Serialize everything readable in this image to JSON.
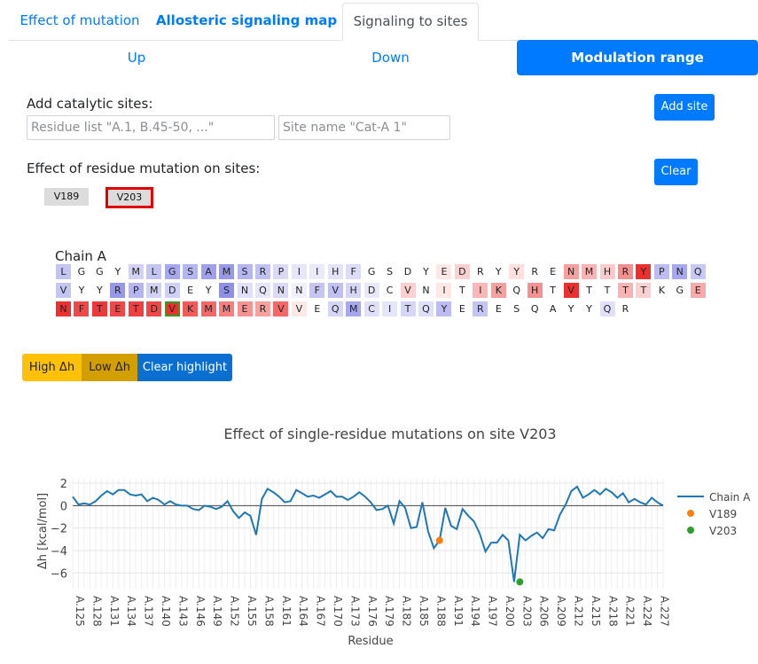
{
  "tabs": [
    {
      "label": "Effect of mutation"
    },
    {
      "label": "Allosteric signaling map"
    },
    {
      "label": "Signaling to sites"
    }
  ],
  "subtabs": [
    {
      "label": "Up"
    },
    {
      "label": "Down"
    },
    {
      "label": "Modulation range"
    }
  ],
  "add_sites": {
    "label": "Add catalytic sites:",
    "residue_placeholder": "Residue list \"A.1, B.45-50, ...\"",
    "name_placeholder": "Site name \"Cat-A 1\"",
    "add_button": "Add site"
  },
  "effect_sites": {
    "label": "Effect of residue mutation on sites:",
    "clear_button": "Clear",
    "sites": [
      {
        "name": "V189",
        "selected": false
      },
      {
        "name": "V203",
        "selected": true
      }
    ]
  },
  "sequence": {
    "chain_label": "Chain A",
    "rows": [
      [
        [
          "L",
          "#c5c5f4"
        ],
        [
          "G",
          "#ffffff"
        ],
        [
          "G",
          "#ffffff"
        ],
        [
          "Y",
          "#ffffff"
        ],
        [
          "M",
          "#d2d2f6"
        ],
        [
          "L",
          "#c5c5f4"
        ],
        [
          "G",
          "#a8a8ee"
        ],
        [
          "S",
          "#b5b5f0"
        ],
        [
          "A",
          "#a0a0ec"
        ],
        [
          "M",
          "#9898eb"
        ],
        [
          "S",
          "#b5b5f0"
        ],
        [
          "R",
          "#c0c0f2"
        ],
        [
          "P",
          "#dadaf7"
        ],
        [
          "I",
          "#e6e6fa"
        ],
        [
          "I",
          "#eaeafb"
        ],
        [
          "H",
          "#e4e4f9"
        ],
        [
          "F",
          "#dcdcf7"
        ],
        [
          "G",
          "#ffffff"
        ],
        [
          "S",
          "#ffffff"
        ],
        [
          "D",
          "#ffffff"
        ],
        [
          "Y",
          "#ffffff"
        ],
        [
          "E",
          "#fde8e8"
        ],
        [
          "D",
          "#fbd0d0"
        ],
        [
          "R",
          "#ffffff"
        ],
        [
          "Y",
          "#ffffff"
        ],
        [
          "Y",
          "#fde0e0"
        ],
        [
          "R",
          "#ffffff"
        ],
        [
          "E",
          "#ffffff"
        ],
        [
          "N",
          "#f6a0a0"
        ],
        [
          "M",
          "#f8b4b4"
        ],
        [
          "H",
          "#fbcaca"
        ],
        [
          "R",
          "#f29090"
        ],
        [
          "Y",
          "#ec3030"
        ],
        [
          "P",
          "#bcbcf2"
        ],
        [
          "N",
          "#a8a8ee"
        ],
        [
          "Q",
          "#c8c8f4"
        ]
      ],
      [
        [
          "V",
          "#c5c5f4"
        ],
        [
          "Y",
          "#ffffff"
        ],
        [
          "Y",
          "#ffffff"
        ],
        [
          "R",
          "#9898eb"
        ],
        [
          "P",
          "#b5b5f0"
        ],
        [
          "M",
          "#d2d2f6"
        ],
        [
          "D",
          "#d0d0f6"
        ],
        [
          "E",
          "#ffffff"
        ],
        [
          "Y",
          "#ffffff"
        ],
        [
          "S",
          "#9090e8"
        ],
        [
          "N",
          "#e0e0f8"
        ],
        [
          "Q",
          "#e6e6fa"
        ],
        [
          "N",
          "#dadaf7"
        ],
        [
          "N",
          "#f0f0fc"
        ],
        [
          "F",
          "#c5c5f4"
        ],
        [
          "V",
          "#c0c0f2"
        ],
        [
          "H",
          "#d5d5f6"
        ],
        [
          "D",
          "#e8e8fa"
        ],
        [
          "C",
          "#ffffff"
        ],
        [
          "V",
          "#fbd0d0"
        ],
        [
          "N",
          "#ffffff"
        ],
        [
          "I",
          "#fde8e8"
        ],
        [
          "T",
          "#ffffff"
        ],
        [
          "I",
          "#f8b8b8"
        ],
        [
          "K",
          "#f4a0a0"
        ],
        [
          "Q",
          "#ffffff"
        ],
        [
          "H",
          "#f29292"
        ],
        [
          "T",
          "#ffffff"
        ],
        [
          "V",
          "#ec3030"
        ],
        [
          "T",
          "#ffffff"
        ],
        [
          "T",
          "#ffffff"
        ],
        [
          "T",
          "#f8b4b4"
        ],
        [
          "T",
          "#fbd0d0"
        ],
        [
          "K",
          "#ffffff"
        ],
        [
          "G",
          "#ffffff"
        ],
        [
          "E",
          "#f6aaaa"
        ]
      ],
      [
        [
          "N",
          "#ec3030"
        ],
        [
          "F",
          "#f04848"
        ],
        [
          "T",
          "#ec3838"
        ],
        [
          "E",
          "#f04848"
        ],
        [
          "T",
          "#ee4040"
        ],
        [
          "D",
          "#f04848"
        ],
        [
          "V",
          "#ec3030"
        ],
        [
          "K",
          "#f25a5a"
        ],
        [
          "M",
          "#f46868"
        ],
        [
          "M",
          "#f87f7f"
        ],
        [
          "E",
          "#f69292"
        ],
        [
          "R",
          "#f8a0a0"
        ],
        [
          "V",
          "#f46868"
        ],
        [
          "V",
          "#fde8e8"
        ],
        [
          "E",
          "#ffffff"
        ],
        [
          "Q",
          "#d5d5f6"
        ],
        [
          "M",
          "#a8a8ee"
        ],
        [
          "C",
          "#e0e0f8"
        ],
        [
          "I",
          "#e6e6fa"
        ],
        [
          "T",
          "#d5d5f6"
        ],
        [
          "Q",
          "#e0e0f8"
        ],
        [
          "Y",
          "#bcbcf2"
        ],
        [
          "E",
          "#ffffff"
        ],
        [
          "R",
          "#c5c5f4"
        ],
        [
          "E",
          "#ffffff"
        ],
        [
          "S",
          "#ffffff"
        ],
        [
          "Q",
          "#ffffff"
        ],
        [
          "A",
          "#ffffff"
        ],
        [
          "Y",
          "#ffffff"
        ],
        [
          "Y",
          "#ffffff"
        ],
        [
          "Q",
          "#e0e0f8"
        ],
        [
          "R",
          "#ffffff"
        ]
      ]
    ]
  },
  "highlight_buttons": {
    "high": "High Δh",
    "low": "Low Δh",
    "clear": "Clear highlight"
  },
  "chart_data": {
    "type": "line",
    "title": "Effect of single-residue mutations on site V203",
    "xlabel": "Residue",
    "ylabel": "Δh [kcal/mol]",
    "ylim": [
      -7.4,
      2.4
    ],
    "yticks": [
      -6,
      -4,
      -2,
      0,
      2
    ],
    "x_tick_labels": [
      "A.125",
      "A.128",
      "A.131",
      "A.134",
      "A.137",
      "A.140",
      "A.143",
      "A.146",
      "A.149",
      "A.152",
      "A.155",
      "A.158",
      "A.161",
      "A.164",
      "A.167",
      "A.170",
      "A.173",
      "A.176",
      "A.179",
      "A.182",
      "A.185",
      "A.188",
      "A.191",
      "A.194",
      "A.197",
      "A.200",
      "A.203",
      "A.206",
      "A.209",
      "A.212",
      "A.215",
      "A.218",
      "A.221",
      "A.224",
      "A.227"
    ],
    "x_start": 125,
    "x_end": 228,
    "legend_position": "right",
    "grid": true,
    "series": [
      {
        "name": "Chain A",
        "color": "#1f77b4",
        "x": [
          125,
          126,
          127,
          128,
          129,
          130,
          131,
          132,
          133,
          134,
          135,
          136,
          137,
          138,
          139,
          140,
          141,
          142,
          143,
          144,
          145,
          146,
          147,
          148,
          149,
          150,
          151,
          152,
          153,
          154,
          155,
          156,
          157,
          158,
          159,
          160,
          161,
          162,
          163,
          164,
          165,
          166,
          167,
          168,
          169,
          170,
          171,
          172,
          173,
          174,
          175,
          176,
          177,
          178,
          179,
          180,
          181,
          182,
          183,
          184,
          185,
          186,
          187,
          188,
          189,
          190,
          191,
          192,
          193,
          194,
          195,
          196,
          197,
          198,
          199,
          200,
          201,
          202,
          203,
          204,
          205,
          206,
          207,
          208,
          209,
          210,
          211,
          212,
          213,
          214,
          215,
          216,
          217,
          218,
          219,
          220,
          221,
          222,
          223,
          224,
          225,
          226,
          227,
          228
        ],
        "y": [
          0.8,
          0.1,
          0.2,
          0.1,
          0.4,
          0.9,
          1.3,
          1.0,
          1.4,
          1.4,
          1.0,
          0.9,
          1.0,
          0.4,
          0.7,
          0.5,
          0.1,
          0.4,
          0.1,
          0.0,
          0.0,
          -0.3,
          -0.4,
          0.0,
          -0.1,
          -0.3,
          -0.1,
          0.4,
          -0.5,
          -1.1,
          -0.6,
          -0.9,
          -2.6,
          0.6,
          1.5,
          1.2,
          0.8,
          0.3,
          0.4,
          1.4,
          1.1,
          0.8,
          0.9,
          0.7,
          1.0,
          1.3,
          0.8,
          0.8,
          0.5,
          0.8,
          1.2,
          0.8,
          0.3,
          -0.4,
          -0.3,
          0.0,
          -1.6,
          0.4,
          -0.2,
          -2.0,
          -1.9,
          0.3,
          -2.3,
          -3.8,
          -3.1,
          -0.2,
          -1.8,
          -2.1,
          -0.3,
          -0.9,
          -1.4,
          -2.5,
          -4.1,
          -3.3,
          -3.3,
          -2.6,
          -3.1,
          -6.8,
          -2.6,
          -3.1,
          -2.7,
          -2.4,
          -2.9,
          -2.1,
          -2.2,
          -0.8,
          0.1,
          1.3,
          1.7,
          0.7,
          1.0,
          1.4,
          1.0,
          1.5,
          1.2,
          0.7,
          1.1,
          0.3,
          0.6,
          0.3,
          0.1,
          0.7,
          0.3,
          0.0
        ]
      },
      {
        "name": "V189",
        "color": "#ff7f0e",
        "x": [
          189
        ],
        "y": [
          -3.1
        ]
      },
      {
        "name": "V203",
        "color": "#2ca02c",
        "x": [
          203
        ],
        "y": [
          -6.8
        ]
      }
    ]
  }
}
